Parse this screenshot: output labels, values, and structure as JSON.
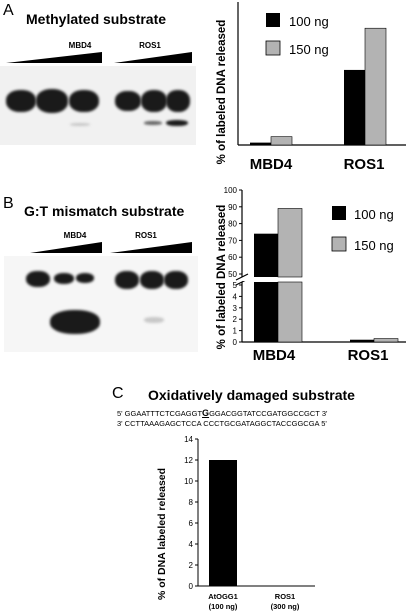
{
  "panelA": {
    "letter": "A",
    "title": "Methylated substrate",
    "blot_labels": [
      "MBD4",
      "ROS1"
    ],
    "chart_data": {
      "type": "bar",
      "categories": [
        "MBD4",
        "ROS1"
      ],
      "series": [
        {
          "name": "100 ng",
          "color": "#000000",
          "values": [
            0.2,
            6.3
          ]
        },
        {
          "name": "150 ng",
          "color": "#b3b3b3",
          "values": [
            0.7,
            9.8
          ]
        }
      ],
      "ylabel": "% of labeled DNA released",
      "ylim": [
        0,
        12
      ]
    }
  },
  "panelB": {
    "letter": "B",
    "title": "G:T mismatch substrate",
    "blot_labels": [
      "MBD4",
      "ROS1"
    ],
    "chart_data": {
      "type": "bar",
      "categories": [
        "MBD4",
        "ROS1"
      ],
      "series": [
        {
          "name": "100 ng",
          "color": "#000000",
          "values": [
            74,
            0.2
          ]
        },
        {
          "name": "150 ng",
          "color": "#b3b3b3",
          "values": [
            89,
            0.3
          ]
        }
      ],
      "ylabel": "% of labeled DNA released",
      "lower_ticks": [
        "0",
        "1",
        "2",
        "3",
        "4",
        "5"
      ],
      "upper_ticks": [
        "50",
        "60",
        "70",
        "80",
        "90",
        "100"
      ]
    }
  },
  "panelC": {
    "letter": "C",
    "title": "Oxidatively damaged substrate",
    "seq_top_a": "5' GGAATTTCTCGAGGT",
    "seq_top_g": "G",
    "seq_top_b": "GGACGGTATCCGATGGCCGCT 3'",
    "seq_bottom": "3' CCTTAAAGAGCTCCA CCCTGCGATAGGCTACCGGCGA 5'",
    "chart_data": {
      "type": "bar",
      "categories": [
        "AtOGG1 (100 ng)",
        "ROS1 (300 ng)"
      ],
      "category_lines": [
        [
          "AtOGG1",
          "(100 ng)"
        ],
        [
          "ROS1",
          "(300 ng)"
        ]
      ],
      "values": [
        12,
        0
      ],
      "ylabel": "% of DNA labeled released",
      "ylim": [
        0,
        14
      ],
      "ticks": [
        "0",
        "2",
        "4",
        "6",
        "8",
        "10",
        "12",
        "14"
      ]
    }
  }
}
